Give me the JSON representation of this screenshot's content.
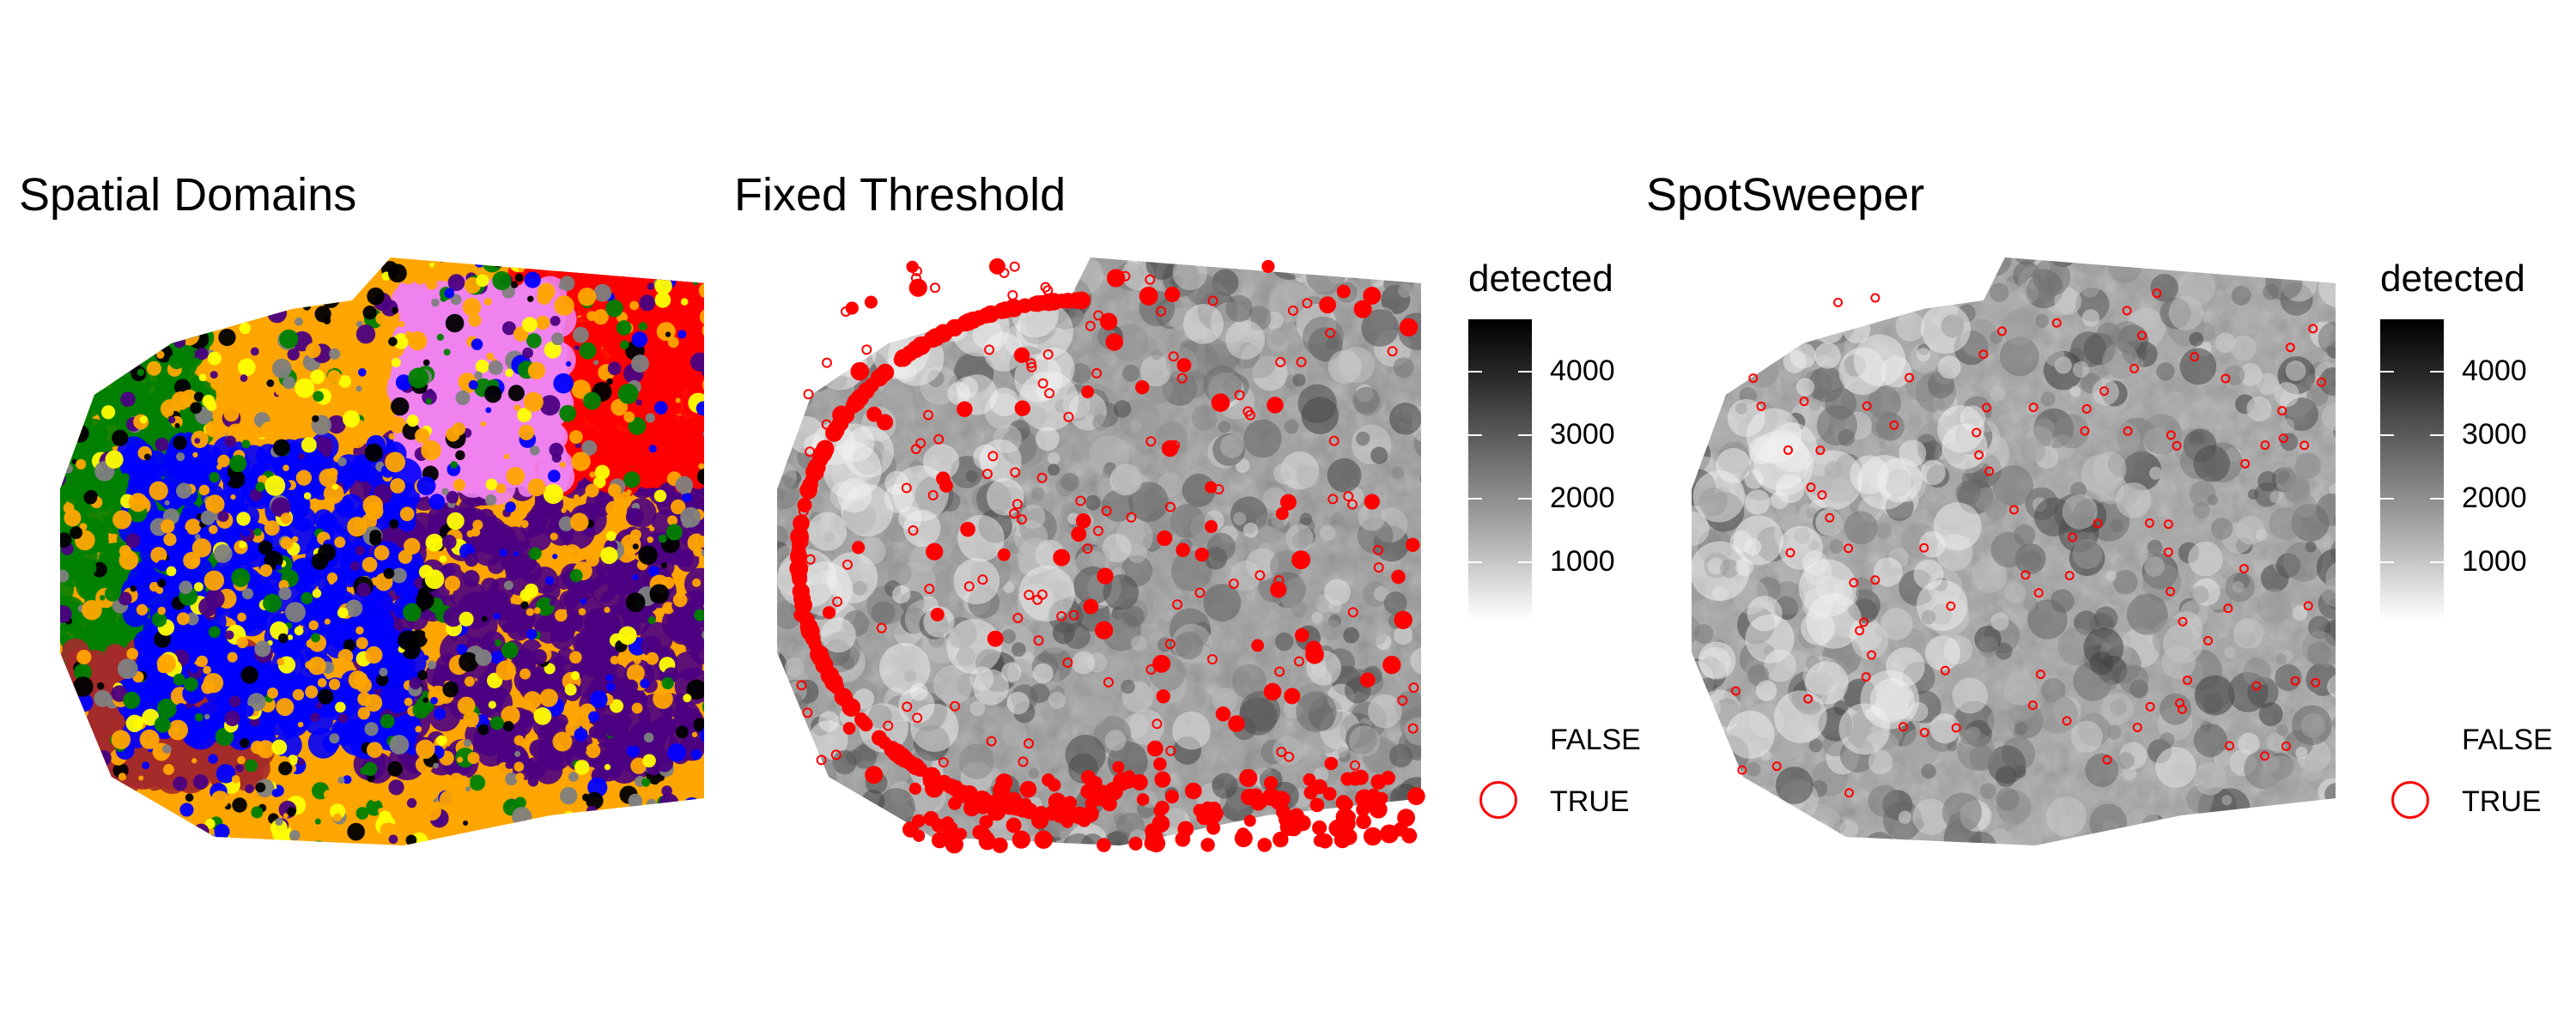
{
  "chart_data": [
    {
      "type": "scatter",
      "title": "Spatial Domains",
      "xlabel": "",
      "ylabel": "",
      "grid": false,
      "legend": "none",
      "colors": {
        "domains": [
          "#008000",
          "#FFA500",
          "#0000FF",
          "#4B0082",
          "#808080",
          "#A52A2A",
          "#FF0000",
          "#EE82EE",
          "#FFFF00",
          "#000000"
        ]
      }
    },
    {
      "type": "scatter",
      "title": "Fixed Threshold",
      "xlabel": "",
      "ylabel": "",
      "grid": false,
      "legend": "right",
      "colorbar": {
        "title": "detected",
        "ticks": [
          "4000",
          "3000",
          "2000",
          "1000"
        ],
        "range": [
          0,
          4800
        ]
      },
      "outlier_legend": [
        "FALSE",
        "TRUE"
      ],
      "colors": {
        "outlier": "#FF0000",
        "low": "#FFFFFF",
        "high": "#000000"
      }
    },
    {
      "type": "scatter",
      "title": "SpotSweeper",
      "xlabel": "",
      "ylabel": "",
      "grid": false,
      "legend": "right",
      "colorbar": {
        "title": "detected",
        "ticks": [
          "4000",
          "3000",
          "2000",
          "1000"
        ],
        "range": [
          0,
          4800
        ]
      },
      "outlier_legend": [
        "FALSE",
        "TRUE"
      ],
      "colors": {
        "outlier": "#FF0000",
        "low": "#FFFFFF",
        "high": "#000000"
      }
    }
  ]
}
